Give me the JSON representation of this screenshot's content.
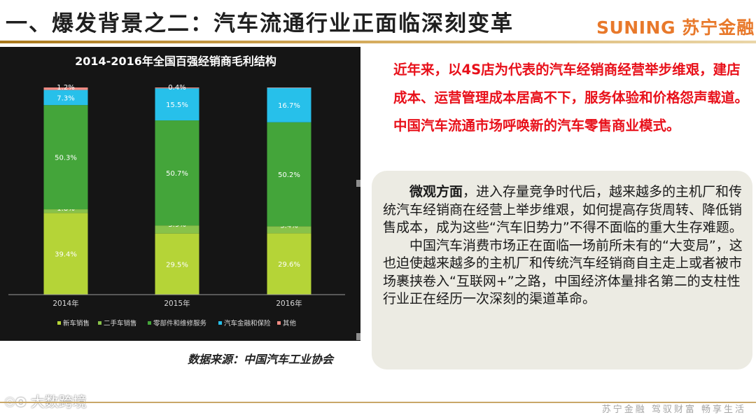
{
  "header": {
    "title": "一、爆发背景之二：汽车流通行业正面临深刻变革",
    "brand_en": "SUNING",
    "brand_cn": "苏宁金融"
  },
  "chart_data": {
    "type": "bar",
    "stacked": true,
    "title": "2014-2016年全国百强经销商毛利结构",
    "categories": [
      "2014年",
      "2015年",
      "2016年"
    ],
    "ylim": [
      0,
      100
    ],
    "grid": false,
    "legend_position": "bottom",
    "series": [
      {
        "name": "新车销售",
        "color": "#b5d437",
        "values": [
          39.4,
          29.5,
          29.6
        ],
        "labels": [
          "39.4%",
          "29.5%",
          "29.6%"
        ]
      },
      {
        "name": "二手车销售",
        "color": "#88c24a",
        "values": [
          1.8,
          3.9,
          3.4
        ],
        "labels": [
          "1.8%",
          "3.9%",
          "3.4%"
        ]
      },
      {
        "name": "零部件和维修服务",
        "color": "#44a53a",
        "values": [
          50.3,
          50.7,
          50.2
        ],
        "labels": [
          "50.3%",
          "50.7%",
          "50.2%"
        ]
      },
      {
        "name": "汽车金融和保险",
        "color": "#27c0ea",
        "values": [
          7.3,
          15.5,
          16.7
        ],
        "labels": [
          "7.3%",
          "15.5%",
          "16.7%"
        ]
      },
      {
        "name": "其他",
        "color": "#f08a82",
        "values": [
          1.2,
          0.4,
          0.1
        ],
        "labels": [
          "1.2%",
          "0.4%",
          ""
        ]
      }
    ]
  },
  "source": "数据来源：中国汽车工业协会",
  "intro_text": "近年来，以4S店为代表的汽车经销商经营举步维艰，建店成本、运营管理成本居高不下，服务体验和价格怨声载道。中国汽车流通市场呼唤新的汽车零售商业模式。",
  "micro": {
    "lead": "微观方面",
    "p1": "，进入存量竞争时代后，越来越多的主机厂和传统汽车经销商在经营上举步维艰，如何提高存货周转、降低销售成本，成为这些“汽车旧势力”不得不面临的重大生存难题。",
    "p2": "中国汽车消费市场正在面临一场前所未有的“大变局”，这也迫使越来越多的主机厂和传统汽车经销商自主走上或者被市场裹挟卷入“互联网+”之路，中国经济体量排名第二的支柱性行业正在经历一次深刻的渠道革命。"
  },
  "watermark": {
    "icon": "camera-logo-icon",
    "text": "大数跨境"
  },
  "footer": {
    "tagline": "苏宁金融 驾驭财富 畅享生活"
  }
}
